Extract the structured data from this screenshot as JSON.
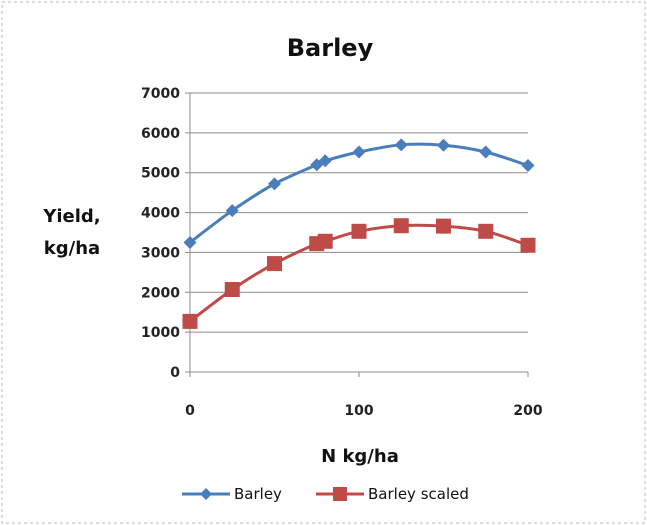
{
  "chart_data": {
    "type": "line",
    "title": "Barley",
    "xlabel": "N kg/ha",
    "ylabel": [
      "Yield,",
      "kg/ha"
    ],
    "xlim": [
      0,
      200
    ],
    "ylim": [
      0,
      7000
    ],
    "xticks": [
      0,
      100,
      200
    ],
    "yticks": [
      0,
      1000,
      2000,
      3000,
      4000,
      5000,
      6000,
      7000
    ],
    "grid": "horizontal",
    "legend_position": "bottom",
    "series": [
      {
        "name": "Barley",
        "color": "#4a7ebb",
        "marker": "diamond",
        "x": [
          0,
          25,
          50,
          75,
          80,
          100,
          125,
          150,
          175,
          200
        ],
        "y": [
          3250,
          4050,
          4720,
          5200,
          5300,
          5520,
          5700,
          5690,
          5520,
          5180
        ]
      },
      {
        "name": "Barley scaled",
        "color": "#be4b48",
        "marker": "square",
        "x": [
          0,
          25,
          50,
          75,
          80,
          100,
          125,
          150,
          175,
          200
        ],
        "y": [
          1270,
          2070,
          2720,
          3220,
          3280,
          3530,
          3670,
          3660,
          3530,
          3180
        ]
      }
    ]
  }
}
